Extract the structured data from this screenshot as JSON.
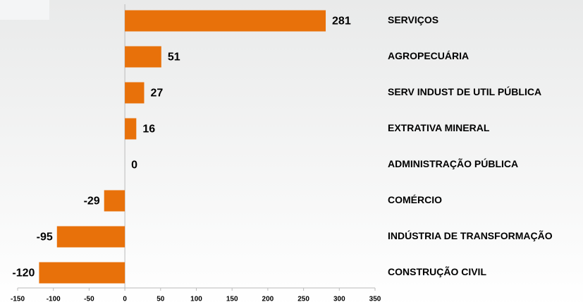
{
  "chart_data": {
    "type": "bar",
    "orientation": "horizontal",
    "categories": [
      "SERVIÇOS",
      "AGROPECUÁRIA",
      "SERV INDUST DE UTIL PÚBLICA",
      "EXTRATIVA MINERAL",
      "ADMINISTRAÇÃO PÚBLICA",
      "COMÉRCIO",
      "INDÚSTRIA DE TRANSFORMAÇÃO",
      "CONSTRUÇÃO CIVIL"
    ],
    "values": [
      281,
      51,
      27,
      16,
      0,
      -29,
      -95,
      -120
    ],
    "color": "#e8710a",
    "xlim": [
      -150,
      350
    ],
    "xticks": [
      -150,
      -100,
      -50,
      0,
      50,
      100,
      150,
      200,
      250,
      300,
      350
    ]
  }
}
